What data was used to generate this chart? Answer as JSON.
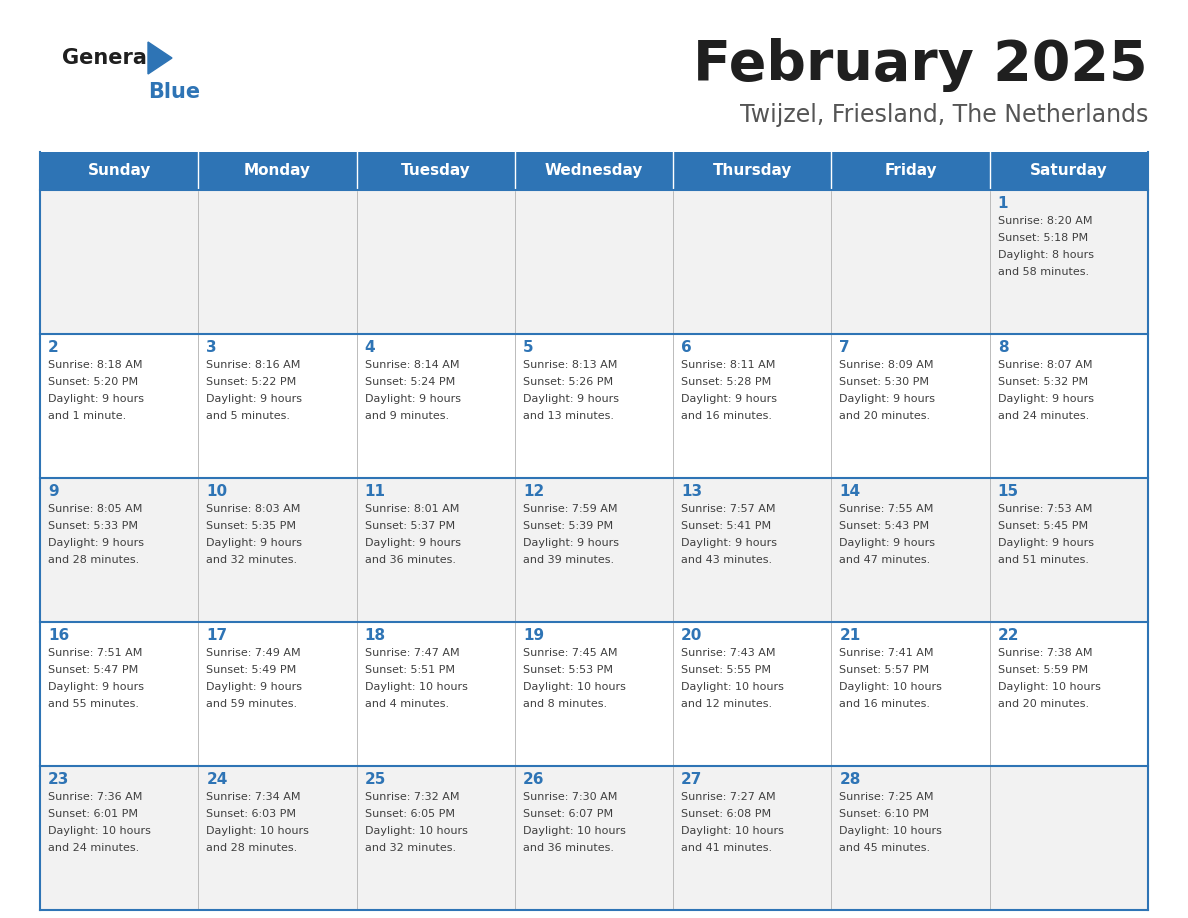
{
  "title": "February 2025",
  "subtitle": "Twijzel, Friesland, The Netherlands",
  "days_of_week": [
    "Sunday",
    "Monday",
    "Tuesday",
    "Wednesday",
    "Thursday",
    "Friday",
    "Saturday"
  ],
  "header_bg": "#2E74B5",
  "header_text_color": "#FFFFFF",
  "cell_bg_odd": "#F2F2F2",
  "cell_bg_even": "#FFFFFF",
  "cell_border_color": "#2E74B5",
  "day_number_color": "#2E74B5",
  "info_text_color": "#404040",
  "title_color": "#1F1F1F",
  "subtitle_color": "#555555",
  "logo_general_color": "#1F1F1F",
  "logo_blue_color": "#2E74B5",
  "weeks": [
    {
      "days": [
        null,
        null,
        null,
        null,
        null,
        null,
        {
          "day": 1,
          "sunrise": "8:20 AM",
          "sunset": "5:18 PM",
          "daylight": "8 hours",
          "daylight2": "and 58 minutes."
        }
      ]
    },
    {
      "days": [
        {
          "day": 2,
          "sunrise": "8:18 AM",
          "sunset": "5:20 PM",
          "daylight": "9 hours",
          "daylight2": "and 1 minute."
        },
        {
          "day": 3,
          "sunrise": "8:16 AM",
          "sunset": "5:22 PM",
          "daylight": "9 hours",
          "daylight2": "and 5 minutes."
        },
        {
          "day": 4,
          "sunrise": "8:14 AM",
          "sunset": "5:24 PM",
          "daylight": "9 hours",
          "daylight2": "and 9 minutes."
        },
        {
          "day": 5,
          "sunrise": "8:13 AM",
          "sunset": "5:26 PM",
          "daylight": "9 hours",
          "daylight2": "and 13 minutes."
        },
        {
          "day": 6,
          "sunrise": "8:11 AM",
          "sunset": "5:28 PM",
          "daylight": "9 hours",
          "daylight2": "and 16 minutes."
        },
        {
          "day": 7,
          "sunrise": "8:09 AM",
          "sunset": "5:30 PM",
          "daylight": "9 hours",
          "daylight2": "and 20 minutes."
        },
        {
          "day": 8,
          "sunrise": "8:07 AM",
          "sunset": "5:32 PM",
          "daylight": "9 hours",
          "daylight2": "and 24 minutes."
        }
      ]
    },
    {
      "days": [
        {
          "day": 9,
          "sunrise": "8:05 AM",
          "sunset": "5:33 PM",
          "daylight": "9 hours",
          "daylight2": "and 28 minutes."
        },
        {
          "day": 10,
          "sunrise": "8:03 AM",
          "sunset": "5:35 PM",
          "daylight": "9 hours",
          "daylight2": "and 32 minutes."
        },
        {
          "day": 11,
          "sunrise": "8:01 AM",
          "sunset": "5:37 PM",
          "daylight": "9 hours",
          "daylight2": "and 36 minutes."
        },
        {
          "day": 12,
          "sunrise": "7:59 AM",
          "sunset": "5:39 PM",
          "daylight": "9 hours",
          "daylight2": "and 39 minutes."
        },
        {
          "day": 13,
          "sunrise": "7:57 AM",
          "sunset": "5:41 PM",
          "daylight": "9 hours",
          "daylight2": "and 43 minutes."
        },
        {
          "day": 14,
          "sunrise": "7:55 AM",
          "sunset": "5:43 PM",
          "daylight": "9 hours",
          "daylight2": "and 47 minutes."
        },
        {
          "day": 15,
          "sunrise": "7:53 AM",
          "sunset": "5:45 PM",
          "daylight": "9 hours",
          "daylight2": "and 51 minutes."
        }
      ]
    },
    {
      "days": [
        {
          "day": 16,
          "sunrise": "7:51 AM",
          "sunset": "5:47 PM",
          "daylight": "9 hours",
          "daylight2": "and 55 minutes."
        },
        {
          "day": 17,
          "sunrise": "7:49 AM",
          "sunset": "5:49 PM",
          "daylight": "9 hours",
          "daylight2": "and 59 minutes."
        },
        {
          "day": 18,
          "sunrise": "7:47 AM",
          "sunset": "5:51 PM",
          "daylight": "10 hours",
          "daylight2": "and 4 minutes."
        },
        {
          "day": 19,
          "sunrise": "7:45 AM",
          "sunset": "5:53 PM",
          "daylight": "10 hours",
          "daylight2": "and 8 minutes."
        },
        {
          "day": 20,
          "sunrise": "7:43 AM",
          "sunset": "5:55 PM",
          "daylight": "10 hours",
          "daylight2": "and 12 minutes."
        },
        {
          "day": 21,
          "sunrise": "7:41 AM",
          "sunset": "5:57 PM",
          "daylight": "10 hours",
          "daylight2": "and 16 minutes."
        },
        {
          "day": 22,
          "sunrise": "7:38 AM",
          "sunset": "5:59 PM",
          "daylight": "10 hours",
          "daylight2": "and 20 minutes."
        }
      ]
    },
    {
      "days": [
        {
          "day": 23,
          "sunrise": "7:36 AM",
          "sunset": "6:01 PM",
          "daylight": "10 hours",
          "daylight2": "and 24 minutes."
        },
        {
          "day": 24,
          "sunrise": "7:34 AM",
          "sunset": "6:03 PM",
          "daylight": "10 hours",
          "daylight2": "and 28 minutes."
        },
        {
          "day": 25,
          "sunrise": "7:32 AM",
          "sunset": "6:05 PM",
          "daylight": "10 hours",
          "daylight2": "and 32 minutes."
        },
        {
          "day": 26,
          "sunrise": "7:30 AM",
          "sunset": "6:07 PM",
          "daylight": "10 hours",
          "daylight2": "and 36 minutes."
        },
        {
          "day": 27,
          "sunrise": "7:27 AM",
          "sunset": "6:08 PM",
          "daylight": "10 hours",
          "daylight2": "and 41 minutes."
        },
        {
          "day": 28,
          "sunrise": "7:25 AM",
          "sunset": "6:10 PM",
          "daylight": "10 hours",
          "daylight2": "and 45 minutes."
        },
        null
      ]
    }
  ]
}
